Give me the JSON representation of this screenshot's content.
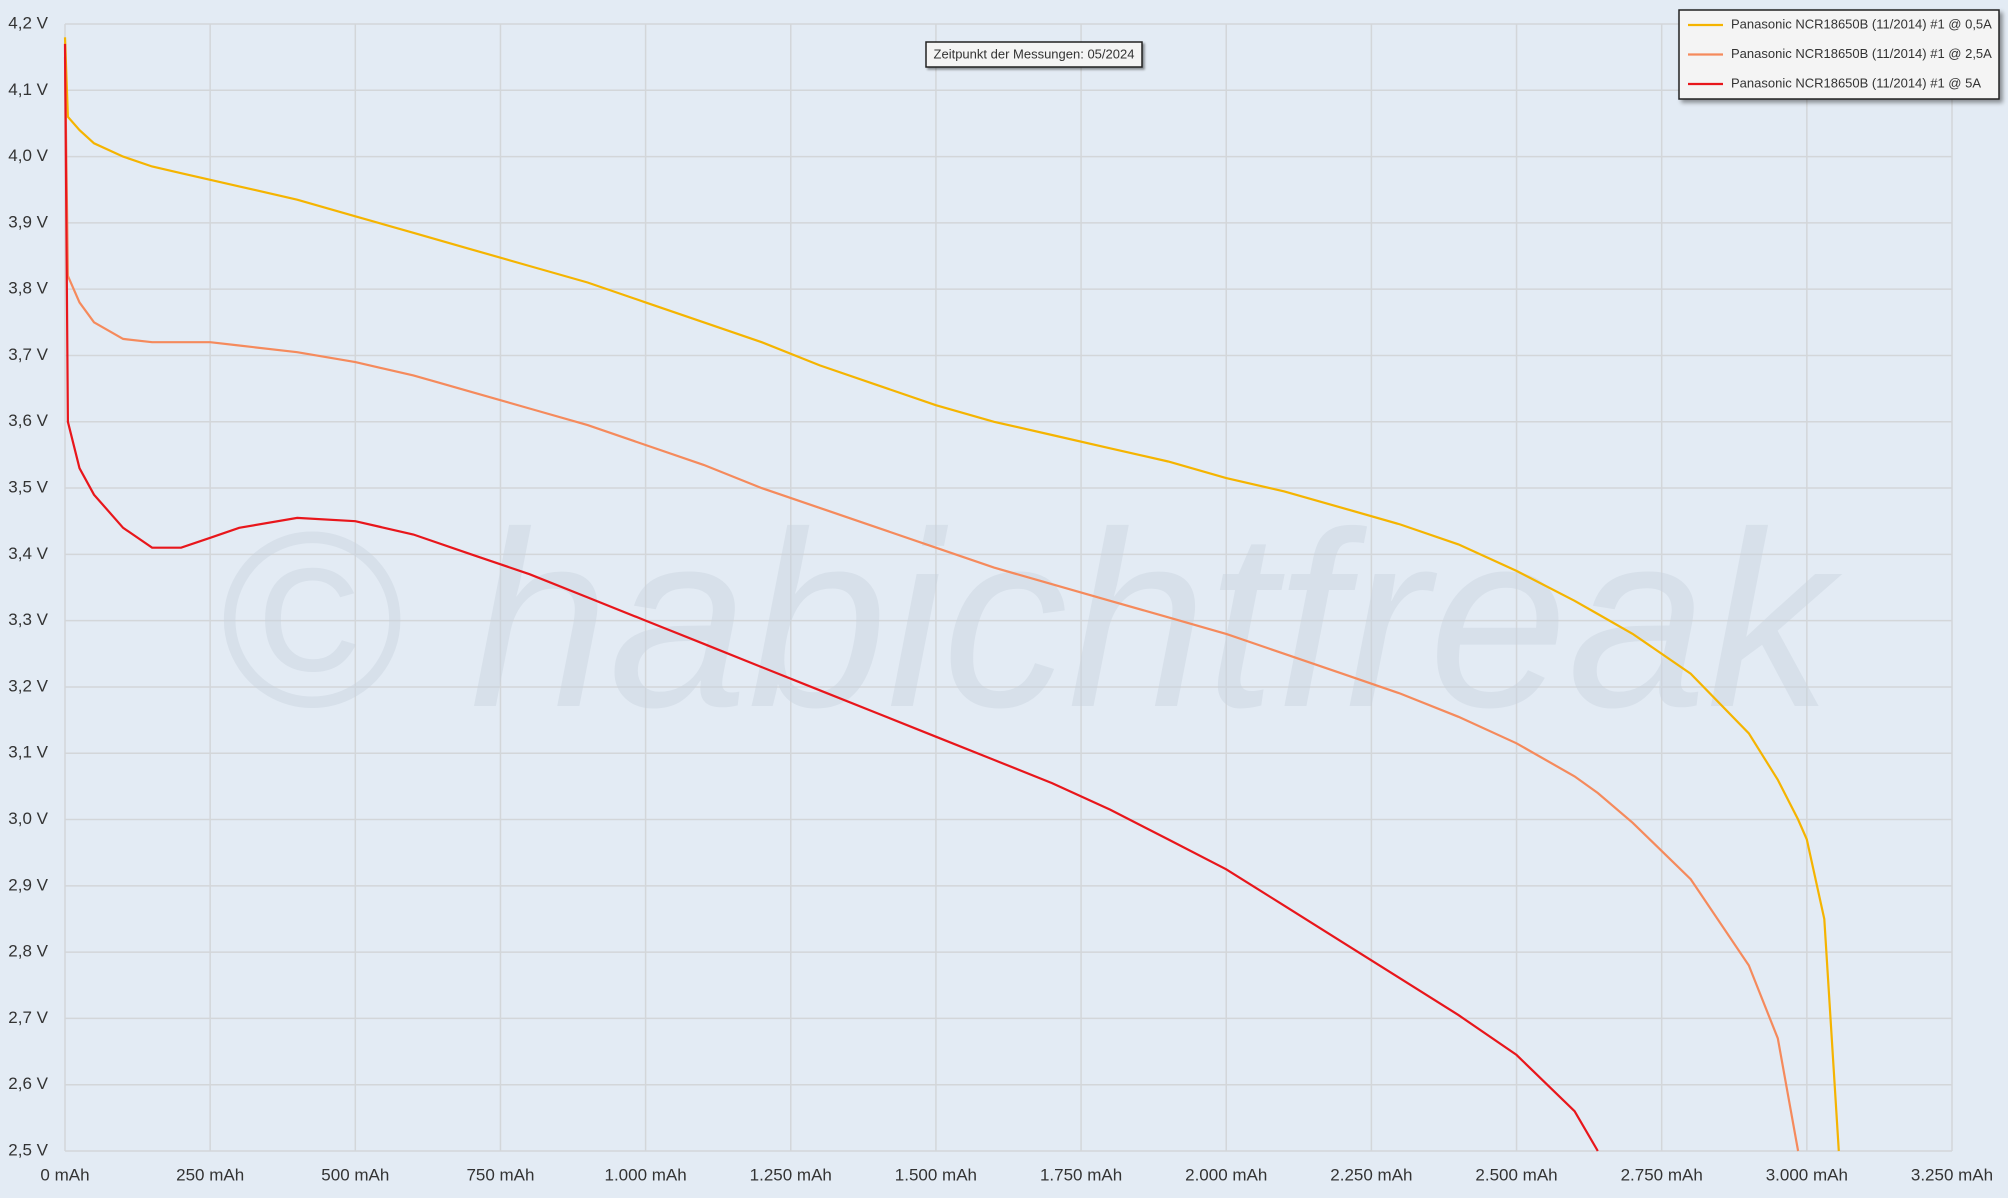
{
  "chart_data": {
    "type": "line",
    "annotation": "Zeitpunkt der Messungen: 05/2024",
    "watermark": "© habichtfreak",
    "grid": true,
    "legend_position": "top-right",
    "x": [
      0,
      5,
      25,
      50,
      100,
      150,
      200,
      250,
      300,
      400,
      500,
      600,
      700,
      800,
      900,
      1000,
      1100,
      1200,
      1300,
      1400,
      1500,
      1600,
      1700,
      1800,
      1900,
      2000,
      2100,
      2200,
      2300,
      2400,
      2500,
      2600,
      2640,
      2700,
      2800,
      2900,
      2950,
      2985,
      3000,
      3030,
      3055
    ],
    "series": [
      {
        "name": "Panasonic NCR18650B (11/2014) #1 @ 0,5A",
        "color": "#f5b400",
        "values": [
          4.18,
          4.06,
          4.04,
          4.02,
          4.0,
          3.985,
          3.975,
          3.965,
          3.955,
          3.935,
          3.91,
          3.885,
          3.86,
          3.835,
          3.81,
          3.78,
          3.75,
          3.72,
          3.685,
          3.655,
          3.625,
          3.6,
          3.58,
          3.56,
          3.54,
          3.515,
          3.495,
          3.47,
          3.445,
          3.415,
          3.375,
          3.33,
          3.31,
          3.28,
          3.22,
          3.13,
          3.06,
          3.0,
          2.97,
          2.85,
          2.5
        ]
      },
      {
        "name": "Panasonic NCR18650B (11/2014) #1 @ 2,5A",
        "color": "#f58a5c",
        "values": [
          4.15,
          3.82,
          3.78,
          3.75,
          3.725,
          3.72,
          3.72,
          3.72,
          3.715,
          3.705,
          3.69,
          3.67,
          3.645,
          3.62,
          3.595,
          3.565,
          3.535,
          3.5,
          3.47,
          3.44,
          3.41,
          3.38,
          3.355,
          3.33,
          3.305,
          3.28,
          3.25,
          3.22,
          3.19,
          3.155,
          3.115,
          3.065,
          3.04,
          2.995,
          2.91,
          2.78,
          2.67,
          2.5,
          null,
          null,
          null
        ]
      },
      {
        "name": "Panasonic NCR18650B (11/2014) #1 @ 5A",
        "color": "#e8161b",
        "values": [
          4.17,
          3.6,
          3.53,
          3.49,
          3.44,
          3.41,
          3.41,
          3.425,
          3.44,
          3.455,
          3.45,
          3.43,
          3.4,
          3.37,
          3.335,
          3.3,
          3.265,
          3.23,
          3.195,
          3.16,
          3.125,
          3.09,
          3.055,
          3.015,
          2.97,
          2.925,
          2.87,
          2.815,
          2.76,
          2.705,
          2.645,
          2.56,
          2.5,
          null,
          null,
          null,
          null,
          null,
          null,
          null,
          null
        ]
      }
    ],
    "xlim": [
      0,
      3250
    ],
    "xticks": [
      {
        "value": 0,
        "label": "0 mAh"
      },
      {
        "value": 250,
        "label": "250 mAh"
      },
      {
        "value": 500,
        "label": "500 mAh"
      },
      {
        "value": 750,
        "label": "750 mAh"
      },
      {
        "value": 1000,
        "label": "1.000 mAh"
      },
      {
        "value": 1250,
        "label": "1.250 mAh"
      },
      {
        "value": 1500,
        "label": "1.500 mAh"
      },
      {
        "value": 1750,
        "label": "1.750 mAh"
      },
      {
        "value": 2000,
        "label": "2.000 mAh"
      },
      {
        "value": 2250,
        "label": "2.250 mAh"
      },
      {
        "value": 2500,
        "label": "2.500 mAh"
      },
      {
        "value": 2750,
        "label": "2.750 mAh"
      },
      {
        "value": 3000,
        "label": "3.000 mAh"
      },
      {
        "value": 3250,
        "label": "3.250 mAh"
      }
    ],
    "ylim": [
      2.5,
      4.2
    ],
    "yticks": [
      {
        "value": 2.5,
        "label": "2,5 V"
      },
      {
        "value": 2.6,
        "label": "2,6 V"
      },
      {
        "value": 2.7,
        "label": "2,7 V"
      },
      {
        "value": 2.8,
        "label": "2,8 V"
      },
      {
        "value": 2.9,
        "label": "2,9 V"
      },
      {
        "value": 3.0,
        "label": "3,0 V"
      },
      {
        "value": 3.1,
        "label": "3,1 V"
      },
      {
        "value": 3.2,
        "label": "3,2 V"
      },
      {
        "value": 3.3,
        "label": "3,3 V"
      },
      {
        "value": 3.4,
        "label": "3,4 V"
      },
      {
        "value": 3.5,
        "label": "3,5 V"
      },
      {
        "value": 3.6,
        "label": "3,6 V"
      },
      {
        "value": 3.7,
        "label": "3,7 V"
      },
      {
        "value": 3.8,
        "label": "3,8 V"
      },
      {
        "value": 3.9,
        "label": "3,9 V"
      },
      {
        "value": 4.0,
        "label": "4,0 V"
      },
      {
        "value": 4.1,
        "label": "4,1 V"
      },
      {
        "value": 4.2,
        "label": "4,2 V"
      }
    ]
  }
}
